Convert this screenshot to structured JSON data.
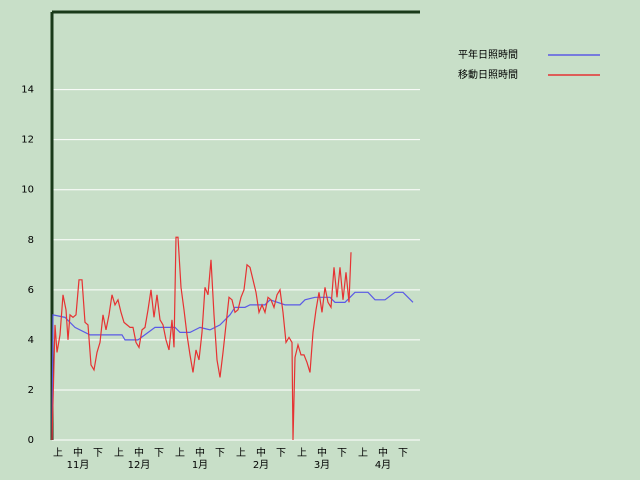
{
  "chart_data": {
    "type": "line",
    "ylim": [
      0,
      17.1
    ],
    "yticks": [
      0,
      2,
      4,
      6,
      8,
      10,
      12,
      14
    ],
    "grid": true,
    "xlim": [
      0,
      184
    ],
    "xticks": [
      {
        "value": 3,
        "label": "上"
      },
      {
        "value": 13,
        "label": "中"
      },
      {
        "value": 23,
        "label": "下"
      },
      {
        "value": 33.5,
        "label": "上"
      },
      {
        "value": 43.5,
        "label": "中"
      },
      {
        "value": 53.5,
        "label": "下"
      },
      {
        "value": 64,
        "label": "上"
      },
      {
        "value": 74,
        "label": "中"
      },
      {
        "value": 84,
        "label": "下"
      },
      {
        "value": 94.5,
        "label": "上"
      },
      {
        "value": 104.5,
        "label": "中"
      },
      {
        "value": 114.5,
        "label": "下"
      },
      {
        "value": 125,
        "label": "上"
      },
      {
        "value": 135,
        "label": "中"
      },
      {
        "value": 145,
        "label": "下"
      },
      {
        "value": 155.5,
        "label": "上"
      },
      {
        "value": 165.5,
        "label": "中"
      },
      {
        "value": 175.5,
        "label": "下"
      }
    ],
    "months": [
      {
        "value": 13,
        "label": "11月"
      },
      {
        "value": 43.5,
        "label": "12月"
      },
      {
        "value": 74,
        "label": "1月"
      },
      {
        "value": 104.5,
        "label": "2月"
      },
      {
        "value": 135,
        "label": "3月"
      },
      {
        "value": 165.5,
        "label": "4月"
      }
    ],
    "series": [
      {
        "name": "平年日照時間",
        "color": "#5a5ae6",
        "x": [
          0,
          0.5,
          6.5,
          11.5,
          19,
          35,
          36.5,
          43,
          51.5,
          61.5,
          64,
          69,
          71.5,
          74,
          79,
          84,
          89,
          91.5,
          96.5,
          99,
          106.5,
          109,
          116.5,
          124,
          126.5,
          131.5,
          139,
          141.5,
          146.5,
          151.5,
          158,
          161.5,
          166.5,
          171.5,
          175.5,
          180.5
        ],
        "values": [
          0,
          5.0,
          4.9,
          4.5,
          4.2,
          4.2,
          4.0,
          4.0,
          4.5,
          4.5,
          4.3,
          4.3,
          4.4,
          4.5,
          4.4,
          4.6,
          5.0,
          5.3,
          5.3,
          5.4,
          5.4,
          5.6,
          5.4,
          5.4,
          5.6,
          5.7,
          5.7,
          5.5,
          5.5,
          5.9,
          5.9,
          5.6,
          5.6,
          5.9,
          5.9,
          5.5
        ]
      },
      {
        "name": "移動日照時間",
        "color": "#e63232",
        "x": [
          0,
          1.5,
          2.5,
          4,
          5.5,
          7,
          8,
          9,
          10.5,
          12,
          13.5,
          15,
          16.5,
          18,
          19.5,
          21,
          22.5,
          24,
          25.5,
          27,
          28.5,
          30,
          31.5,
          33,
          34.5,
          36,
          37.5,
          39,
          40.5,
          42,
          43.5,
          45,
          46.5,
          48,
          49.5,
          51,
          52.5,
          54,
          55.5,
          57,
          58.5,
          60,
          61,
          62,
          63,
          64.5,
          66,
          67.5,
          69,
          70.5,
          72,
          73.5,
          75,
          76.5,
          78,
          79.5,
          81,
          82.5,
          84,
          85.5,
          87,
          88.5,
          90,
          91.5,
          93,
          94.5,
          96,
          97.5,
          99,
          100.5,
          102,
          103.5,
          105,
          106.5,
          108,
          109.5,
          111,
          112.5,
          114,
          115.5,
          117,
          118.5,
          120,
          120.5,
          121.5,
          123,
          124.5,
          126,
          127.5,
          129,
          130.5,
          132,
          133.5,
          135,
          136.5,
          138,
          139.5,
          141,
          142.5,
          144,
          145.5,
          147,
          148.5,
          149.5
        ],
        "values": [
          0,
          4.6,
          3.5,
          4.2,
          5.8,
          5.2,
          4.0,
          5.0,
          4.9,
          5.0,
          6.4,
          6.4,
          4.7,
          4.6,
          3.0,
          2.8,
          3.5,
          3.9,
          5.0,
          4.4,
          5.0,
          5.8,
          5.4,
          5.6,
          5.1,
          4.7,
          4.6,
          4.5,
          4.5,
          3.9,
          3.7,
          4.4,
          4.5,
          5.2,
          6.0,
          4.9,
          5.8,
          4.8,
          4.6,
          4.0,
          3.6,
          4.8,
          3.7,
          8.1,
          8.1,
          6.1,
          5.2,
          4.2,
          3.4,
          2.7,
          3.6,
          3.2,
          4.3,
          6.1,
          5.8,
          7.2,
          5.0,
          3.2,
          2.5,
          3.5,
          4.6,
          5.7,
          5.6,
          5.1,
          5.2,
          5.7,
          6.0,
          7.0,
          6.9,
          6.4,
          5.9,
          5.1,
          5.4,
          5.1,
          5.7,
          5.6,
          5.3,
          5.8,
          6.0,
          5.1,
          3.9,
          4.1,
          3.9,
          0,
          3.3,
          3.8,
          3.4,
          3.4,
          3.1,
          2.7,
          4.3,
          5.2,
          5.9,
          5.1,
          6.1,
          5.5,
          5.3,
          6.9,
          5.7,
          6.9,
          5.6,
          6.7,
          5.5,
          7.5
        ]
      }
    ]
  }
}
